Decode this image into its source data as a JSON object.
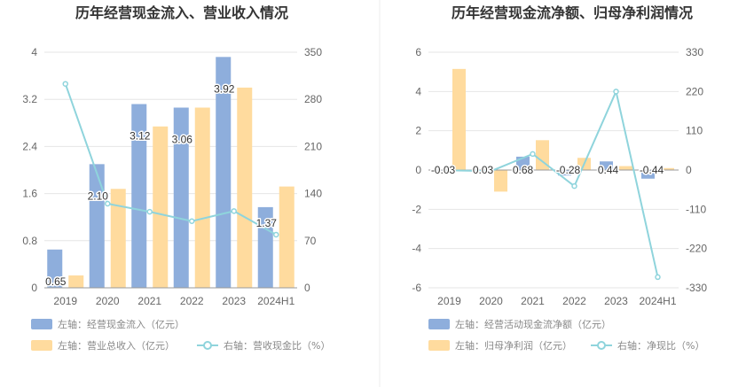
{
  "chart_data": [
    {
      "type": "bar",
      "title": "历年经营现金流入、营业收入情况",
      "categories": [
        "2019",
        "2020",
        "2021",
        "2022",
        "2023",
        "2024H1"
      ],
      "left_axis": {
        "ticks": [
          "0",
          "0.8",
          "1.6",
          "2.4",
          "3.2",
          "4"
        ],
        "range": [
          0,
          4
        ]
      },
      "right_axis": {
        "ticks": [
          "0",
          "70",
          "140",
          "210",
          "280",
          "350"
        ],
        "range": [
          0,
          350
        ]
      },
      "series": [
        {
          "name": "左轴：经营现金流入（亿元）",
          "kind": "bar",
          "axis": "left",
          "color": "#8eaedc",
          "values": [
            0.65,
            2.1,
            3.12,
            3.06,
            3.92,
            1.37
          ]
        },
        {
          "name": "左轴：营业总收入（亿元）",
          "kind": "bar",
          "axis": "left",
          "color": "#ffdb9e",
          "values": [
            0.21,
            1.68,
            2.74,
            3.06,
            3.4,
            1.72
          ]
        },
        {
          "name": "右轴：营收现金比（%）",
          "kind": "line",
          "axis": "right",
          "color": "#8fd4dc",
          "values": [
            303,
            125,
            113,
            99,
            114,
            79
          ]
        }
      ],
      "data_labels": [
        "0.65",
        "2.10",
        "3.12",
        "3.06",
        "3.92",
        "1.37"
      ]
    },
    {
      "type": "bar",
      "title": "历年经营现金流净额、归母净利润情况",
      "categories": [
        "2019",
        "2020",
        "2021",
        "2022",
        "2023",
        "2024H1"
      ],
      "left_axis": {
        "ticks": [
          "-6",
          "-4",
          "-2",
          "0",
          "2",
          "4",
          "6"
        ],
        "range": [
          -6,
          6
        ]
      },
      "right_axis": {
        "ticks": [
          "-330",
          "-220",
          "-110",
          "0",
          "110",
          "220",
          "330"
        ],
        "range": [
          -330,
          330
        ]
      },
      "series": [
        {
          "name": "左轴：经营活动现金流净额（亿元）",
          "kind": "bar",
          "axis": "left",
          "color": "#8eaedc",
          "values": [
            -0.03,
            0.03,
            0.68,
            -0.28,
            0.44,
            -0.44
          ]
        },
        {
          "name": "左轴：归母净利润（亿元）",
          "kind": "bar",
          "axis": "left",
          "color": "#ffdb9e",
          "values": [
            5.15,
            -1.1,
            1.52,
            0.62,
            0.2,
            0.1
          ]
        },
        {
          "name": "右轴：净现比（%）",
          "kind": "line",
          "axis": "right",
          "color": "#8fd4dc",
          "values": [
            -1,
            -3,
            45,
            -45,
            220,
            -300
          ]
        }
      ],
      "data_labels": [
        "-0.03",
        "0.03",
        "0.68",
        "-0.28",
        "0.44",
        "-0.44"
      ]
    }
  ]
}
